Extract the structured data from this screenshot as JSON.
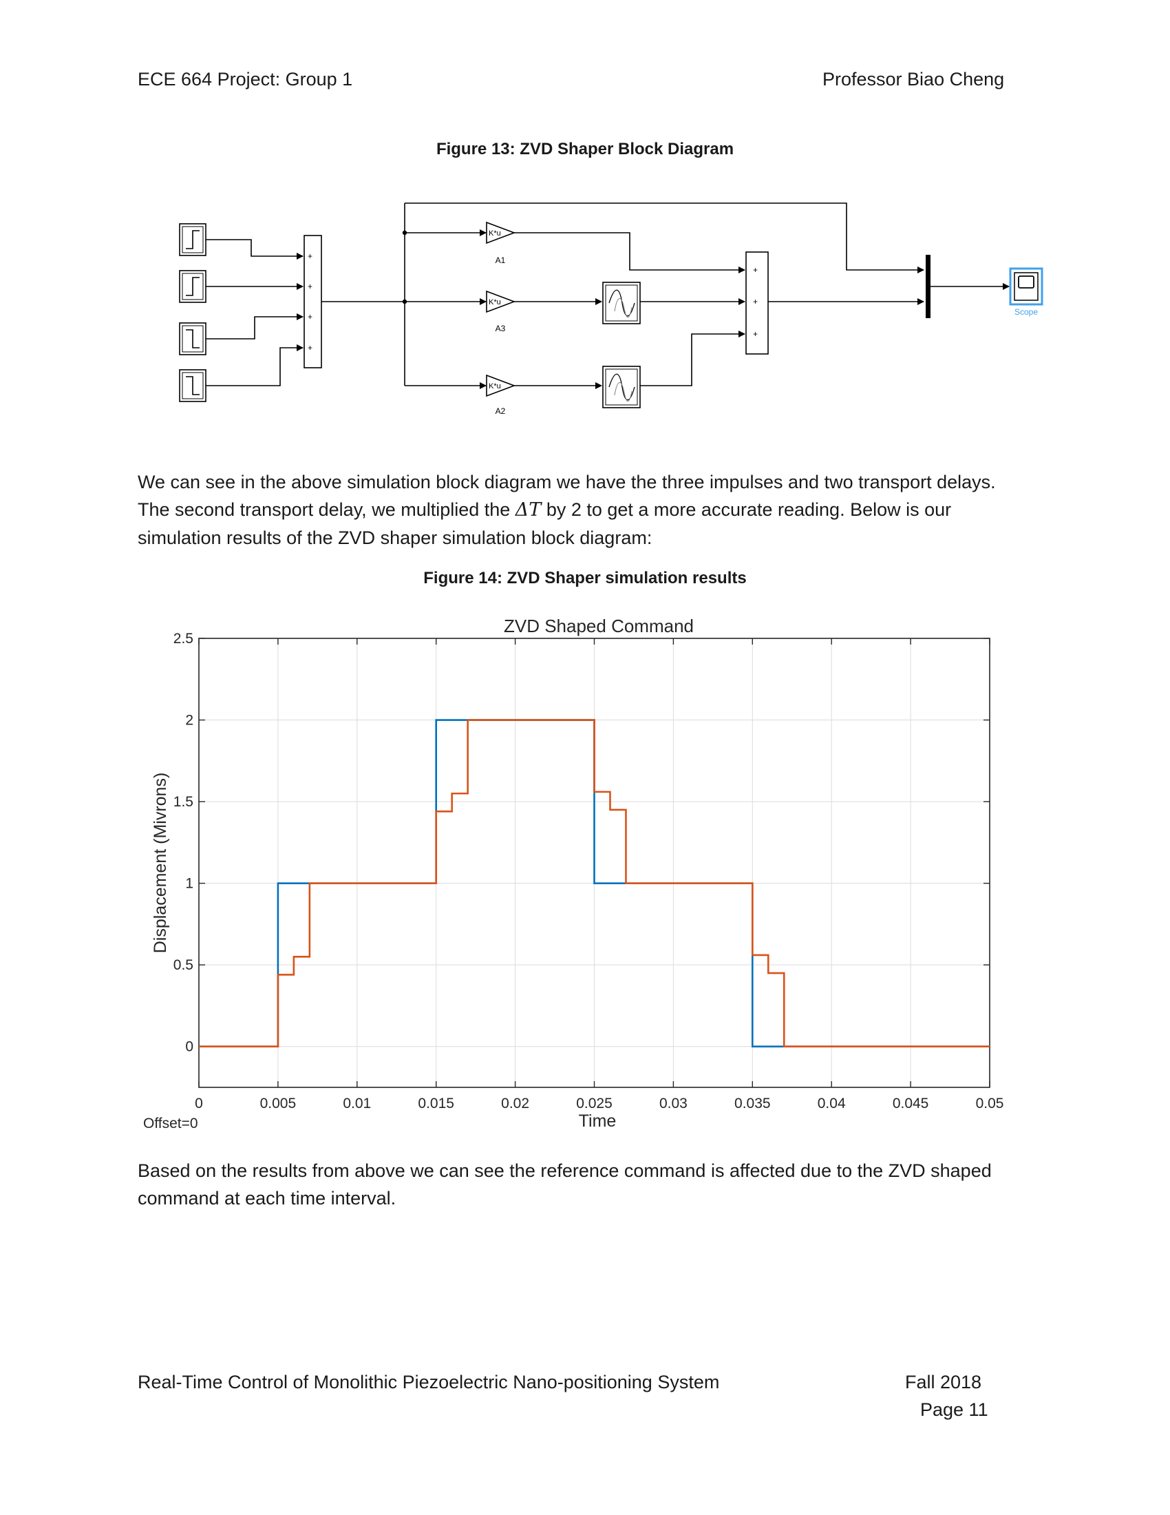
{
  "header": {
    "left": "ECE 664 Project: Group 1",
    "right": "Professor Biao Cheng"
  },
  "figure13": {
    "caption": "Figure 13: ZVD Shaper Block Diagram",
    "gains": [
      {
        "text": "K*u",
        "label": "A1"
      },
      {
        "text": "K*u",
        "label": "A3"
      },
      {
        "text": "K*u",
        "label": "A2"
      }
    ],
    "sum_signs": [
      "+",
      "+",
      "+",
      "+"
    ],
    "sum2_signs": [
      "+",
      "+",
      "+"
    ],
    "scope_label": "Scope"
  },
  "paragraph1": {
    "before": "We can see in the above simulation block diagram we have the three impulses and two transport delays. The second transport delay, we multiplied the ",
    "symbol": "ΔT",
    "after": " by 2 to get a more accurate reading. Below is our simulation results of the ZVD shaper simulation block diagram:"
  },
  "figure14": {
    "caption": "Figure 14: ZVD Shaper simulation results"
  },
  "chart_data": {
    "type": "line",
    "title": "ZVD Shaped Command",
    "xlabel": "Time",
    "ylabel": "Displacement (Mivrons)",
    "xlim": [
      0,
      0.05
    ],
    "ylim": [
      -0.25,
      2.5
    ],
    "xticks": [
      0,
      0.005,
      0.01,
      0.015,
      0.02,
      0.025,
      0.03,
      0.035,
      0.04,
      0.045,
      0.05
    ],
    "xtick_labels": [
      "0",
      "0.005",
      "0.01",
      "0.015",
      "0.02",
      "0.025",
      "0.03",
      "0.035",
      "0.04",
      "0.045",
      "0.05"
    ],
    "yticks": [
      0,
      0.5,
      1,
      1.5,
      2,
      2.5
    ],
    "ytick_labels": [
      "0",
      "0.5",
      "1",
      "1.5",
      "2",
      "2.5"
    ],
    "grid": true,
    "offset_label": "Offset=0",
    "series": [
      {
        "color": "#0072BD",
        "x": [
          0,
          0.005,
          0.005,
          0.015,
          0.015,
          0.025,
          0.025,
          0.035,
          0.035,
          0.05
        ],
        "y": [
          0,
          0,
          1,
          1,
          2,
          2,
          1,
          1,
          0,
          0
        ]
      },
      {
        "color": "#D95319",
        "x": [
          0,
          0.005,
          0.005,
          0.006,
          0.006,
          0.007,
          0.007,
          0.015,
          0.015,
          0.016,
          0.016,
          0.017,
          0.017,
          0.025,
          0.025,
          0.026,
          0.026,
          0.027,
          0.027,
          0.035,
          0.035,
          0.036,
          0.036,
          0.037,
          0.037,
          0.05
        ],
        "y": [
          0,
          0,
          0.44,
          0.44,
          0.55,
          0.55,
          1,
          1,
          1.44,
          1.44,
          1.55,
          1.55,
          2,
          2,
          1.56,
          1.56,
          1.45,
          1.45,
          1,
          1,
          0.56,
          0.56,
          0.45,
          0.45,
          0,
          0
        ]
      }
    ]
  },
  "paragraph2": "Based on the results from above we can see the reference command is affected due to the ZVD shaped command at each time interval.",
  "footer": {
    "left": "Real-Time Control of Monolithic Piezoelectric Nano-positioning System",
    "term": "Fall 2018",
    "page": "Page 11"
  }
}
